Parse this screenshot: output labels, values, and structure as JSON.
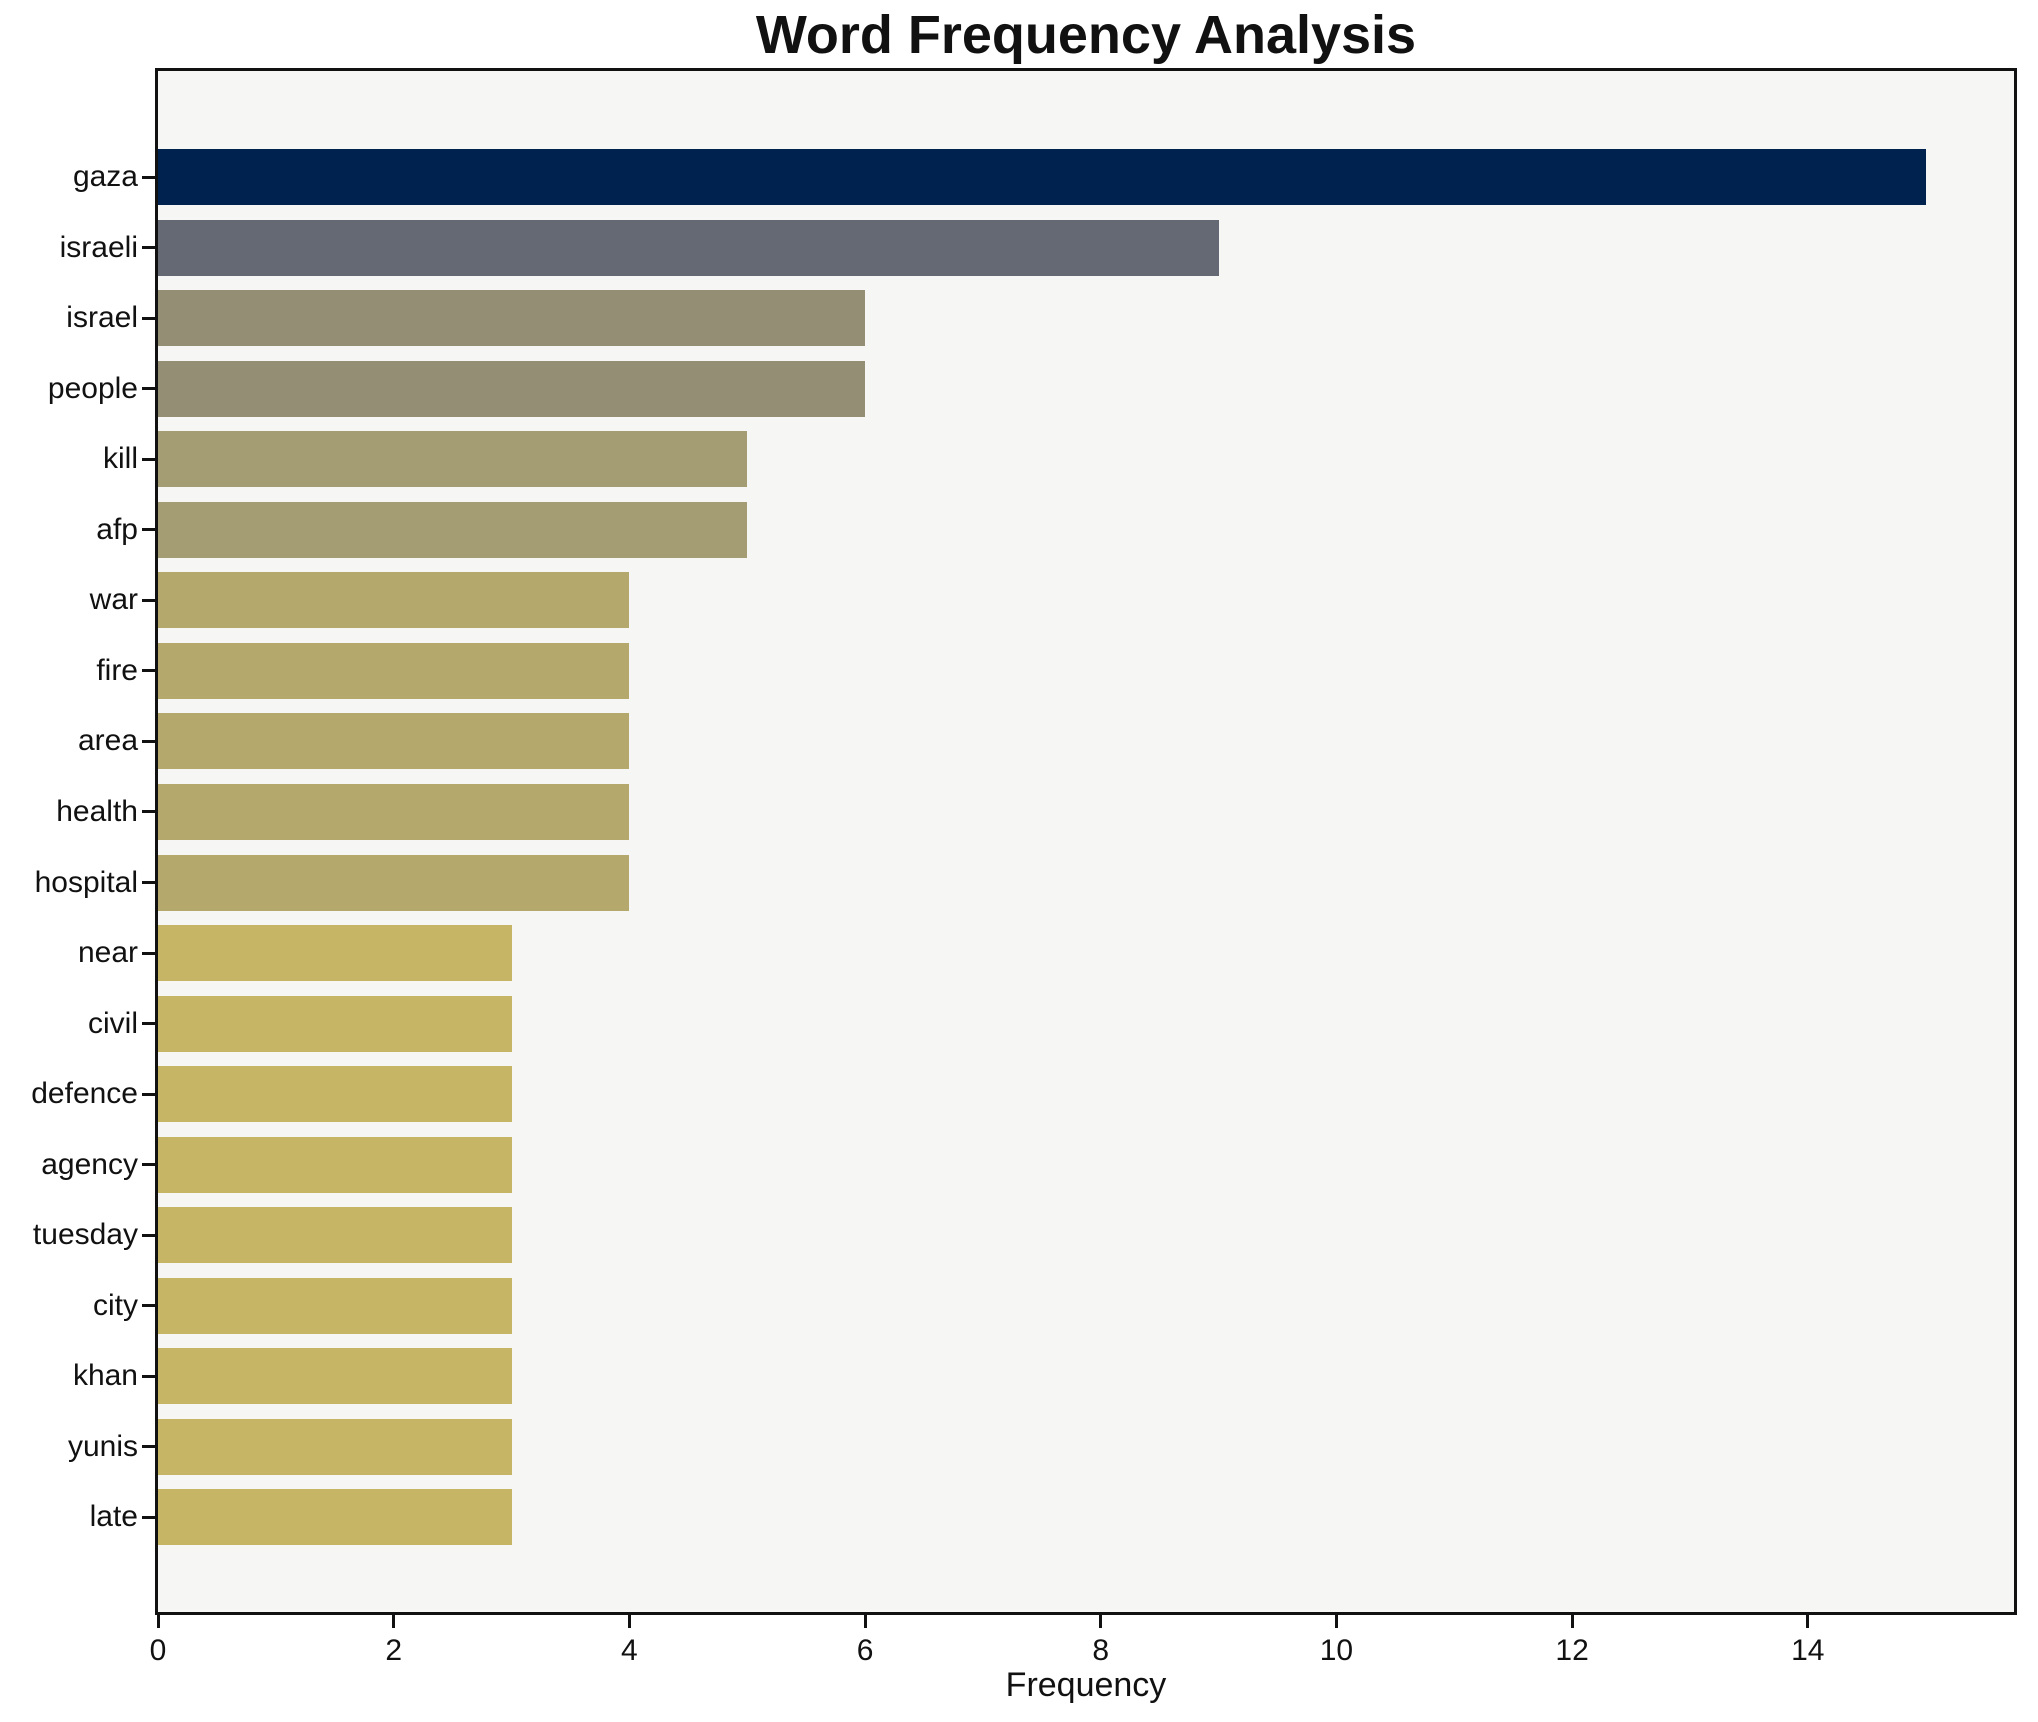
{
  "title": "Word Frequency Analysis",
  "chart_data": {
    "type": "bar",
    "orientation": "horizontal",
    "title": "Word Frequency Analysis",
    "xlabel": "Frequency",
    "ylabel": "",
    "categories": [
      "gaza",
      "israeli",
      "israel",
      "people",
      "kill",
      "afp",
      "war",
      "fire",
      "area",
      "health",
      "hospital",
      "near",
      "civil",
      "defence",
      "agency",
      "tuesday",
      "city",
      "khan",
      "yunis",
      "late"
    ],
    "values": [
      15,
      9,
      6,
      6,
      5,
      5,
      4,
      4,
      4,
      4,
      4,
      3,
      3,
      3,
      3,
      3,
      3,
      3,
      3,
      3
    ],
    "bar_colors": [
      "#00224e",
      "#646973",
      "#948e75",
      "#948e75",
      "#a49c73",
      "#a49c73",
      "#b4a86c",
      "#b4a86c",
      "#b4a86c",
      "#b4a86c",
      "#b4a86c",
      "#c6b565",
      "#c6b565",
      "#c6b565",
      "#c6b565",
      "#c6b565",
      "#c6b565",
      "#c6b565",
      "#c6b565",
      "#c6b565"
    ],
    "xlim": [
      0,
      15.75
    ],
    "xticks": [
      0,
      2,
      4,
      6,
      8,
      10,
      12,
      14
    ],
    "grid": false,
    "legend": "none",
    "plot_background": "#f6f6f5",
    "figure_background": "#ffffff",
    "spine_color": "#111111",
    "colormap": "cividis"
  }
}
